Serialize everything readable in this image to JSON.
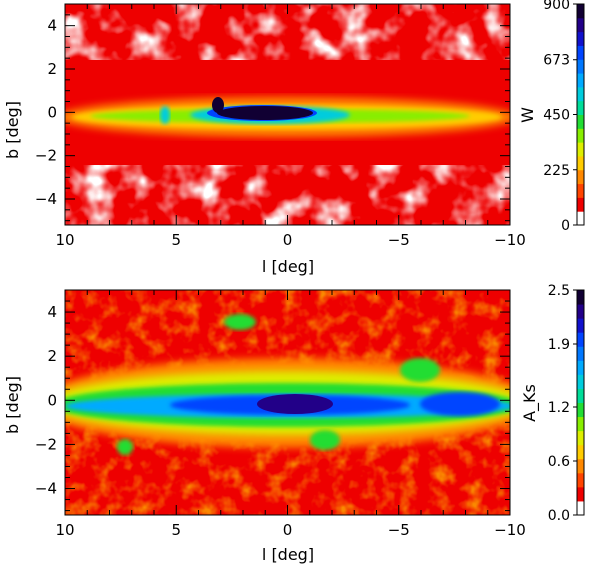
{
  "chart_data": [
    {
      "type": "heatmap",
      "title": "",
      "xlabel": "l [deg]",
      "ylabel": "b [deg]",
      "xlim": [
        10,
        -10
      ],
      "ylim": [
        -5.2,
        5.0
      ],
      "x_ticks": [
        "10",
        "5",
        "0",
        "−5",
        "−10"
      ],
      "y_ticks": [
        "−4",
        "−2",
        "0",
        "2",
        "4"
      ],
      "colorbar": {
        "label": "W",
        "ticks": [
          "0",
          "225",
          "450",
          "673",
          "900"
        ],
        "range": [
          0,
          900
        ]
      },
      "features": [
        {
          "kind": "bright-core",
          "l_center": 0.5,
          "b_center": 0.1,
          "l_width": 3.0,
          "b_width": 0.4,
          "level": 900
        }
      ]
    },
    {
      "type": "heatmap",
      "title": "",
      "xlabel": "l [deg]",
      "ylabel": "b [deg]",
      "xlim": [
        10,
        -10
      ],
      "ylim": [
        -5.2,
        5.0
      ],
      "x_ticks": [
        "10",
        "5",
        "0",
        "−5",
        "−10"
      ],
      "y_ticks": [
        "−4",
        "−2",
        "0",
        "2",
        "4"
      ],
      "colorbar": {
        "label": "A_Ks",
        "ticks": [
          "0.0",
          "0.6",
          "1.2",
          "1.9",
          "2.5"
        ],
        "range": [
          0,
          2.5
        ]
      },
      "features": [
        {
          "kind": "bright-core",
          "l_center": 0.5,
          "b_center": 0.1,
          "l_width": 2.6,
          "b_width": 0.5,
          "level": 2.5
        }
      ]
    }
  ],
  "palette": [
    "#ffffff",
    "#ee0000",
    "#ff4400",
    "#ff8800",
    "#ffcc00",
    "#ddee00",
    "#88ee00",
    "#22dd33",
    "#00dd99",
    "#00ccdd",
    "#00aaff",
    "#0077ff",
    "#0044ff",
    "#1111cc",
    "#220088",
    "#110033"
  ]
}
